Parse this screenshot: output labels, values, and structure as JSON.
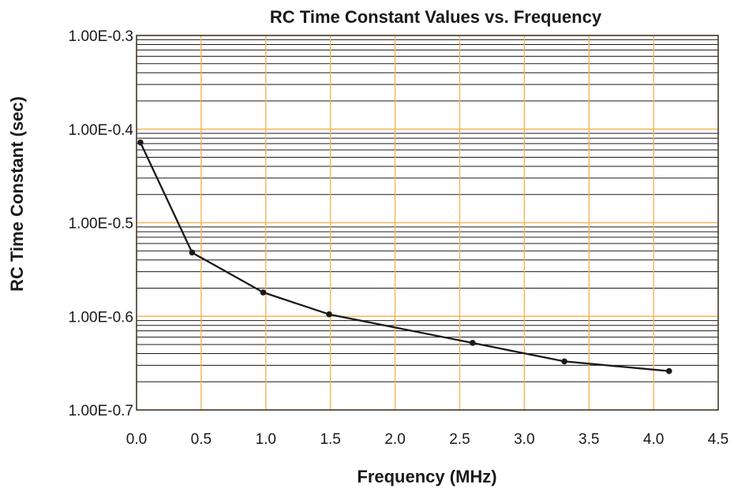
{
  "chart_data": {
    "type": "line",
    "title": "RC Time Constant Values vs. Frequency",
    "xlabel": "Frequency (MHz)",
    "ylabel": "RC Time Constant (sec)",
    "xlim": [
      0,
      4.5
    ],
    "ylim": [
      1e-07,
      0.001
    ],
    "y_scale": "log",
    "x_ticks": [
      0,
      0.5,
      1,
      1.5,
      2,
      2.5,
      3,
      3.5,
      4,
      4.5
    ],
    "x_tick_labels": [
      "0.0",
      "0.5",
      "1.0",
      "1.5",
      "2.0",
      "2.5",
      "3.0",
      "3.5",
      "4.0",
      "4.5"
    ],
    "y_ticks": [
      1e-07,
      1e-06,
      1e-05,
      0.0001,
      0.001
    ],
    "y_tick_labels": [
      "1.00E-0.7",
      "1.00E-0.6",
      "1.00E-0.5",
      "1.00E-0.4",
      "1.00E-0.3"
    ],
    "grid": true,
    "series": [
      {
        "x": [
          0.03,
          0.43,
          0.98,
          1.49,
          2.6,
          3.31,
          4.12
        ],
        "y": [
          7.2e-05,
          4.8e-06,
          1.8e-06,
          1.05e-06,
          5.2e-07,
          3.3e-07,
          2.6e-07
        ]
      }
    ],
    "colors": {
      "line": "#1a1a1a",
      "marker": "#1a1a1a",
      "major_grid": "#f4b45a",
      "minor_grid": "#1a1a1a",
      "frame": "#1a1a1a",
      "text": "#1a1a1a"
    }
  }
}
